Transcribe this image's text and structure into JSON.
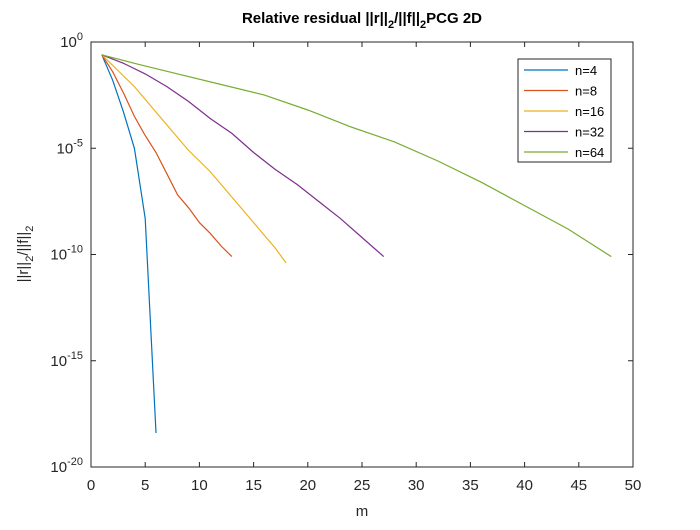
{
  "chart_data": {
    "type": "line",
    "title": {
      "main": "Relative residual ||r||",
      "sub1": "2",
      "mid": "/||f||",
      "sub2": "2",
      "tail": "PCG 2D"
    },
    "xlabel": "m",
    "ylabel": {
      "a": "||r||",
      "sub1": "2",
      "b": "/||f||",
      "sub2": "2"
    },
    "xlim": [
      0,
      50
    ],
    "y_log_exponent_range": [
      -20,
      0
    ],
    "yscale": "log",
    "xticks": [
      0,
      5,
      10,
      15,
      20,
      25,
      30,
      35,
      40,
      45,
      50
    ],
    "yticks": [
      {
        "base": "10",
        "exp": "0",
        "exponent": 0
      },
      {
        "base": "10",
        "exp": "-5",
        "exponent": -5
      },
      {
        "base": "10",
        "exp": "-10",
        "exponent": -10
      },
      {
        "base": "10",
        "exp": "-15",
        "exponent": -15
      },
      {
        "base": "10",
        "exp": "-20",
        "exponent": -20
      }
    ],
    "grid": false,
    "legend_position": "top-right",
    "series": [
      {
        "name": "n=4",
        "color": "#0072BD",
        "x": [
          1,
          2,
          3,
          4,
          5,
          6
        ],
        "log10_y": [
          -0.6,
          -1.8,
          -3.3,
          -5.0,
          -8.3,
          -18.4
        ]
      },
      {
        "name": "n=8",
        "color": "#D95319",
        "x": [
          1,
          2,
          3,
          4,
          5,
          6,
          7,
          8,
          9,
          10,
          11,
          12,
          13
        ],
        "log10_y": [
          -0.6,
          -1.4,
          -2.4,
          -3.5,
          -4.4,
          -5.2,
          -6.2,
          -7.2,
          -7.8,
          -8.5,
          -9.0,
          -9.6,
          -10.1
        ]
      },
      {
        "name": "n=16",
        "color": "#EDB120",
        "x": [
          1,
          2,
          3,
          4,
          5,
          6,
          7,
          8,
          9,
          10,
          11,
          12,
          13,
          14,
          15,
          16,
          17,
          18
        ],
        "log10_y": [
          -0.6,
          -1.1,
          -1.6,
          -2.1,
          -2.7,
          -3.3,
          -3.9,
          -4.5,
          -5.1,
          -5.6,
          -6.1,
          -6.7,
          -7.3,
          -7.9,
          -8.5,
          -9.1,
          -9.7,
          -10.4
        ]
      },
      {
        "name": "n=32",
        "color": "#7E2F8E",
        "x": [
          1,
          3,
          5,
          7,
          9,
          11,
          13,
          15,
          17,
          19,
          21,
          23,
          25,
          27
        ],
        "log10_y": [
          -0.6,
          -1.0,
          -1.5,
          -2.1,
          -2.8,
          -3.6,
          -4.3,
          -5.2,
          -6.0,
          -6.7,
          -7.5,
          -8.3,
          -9.2,
          -10.1
        ]
      },
      {
        "name": "n=64",
        "color": "#77AC30",
        "x": [
          1,
          4,
          8,
          12,
          16,
          20,
          24,
          28,
          32,
          36,
          40,
          44,
          48
        ],
        "log10_y": [
          -0.6,
          -1.0,
          -1.5,
          -2.0,
          -2.5,
          -3.2,
          -4.0,
          -4.7,
          -5.6,
          -6.6,
          -7.7,
          -8.8,
          -10.1
        ]
      }
    ]
  }
}
